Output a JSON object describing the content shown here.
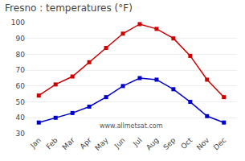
{
  "chart_data": {
    "type": "line",
    "title": "Fresno : temperatures (°F)",
    "categories": [
      "Jan",
      "Feb",
      "Mar",
      "Apr",
      "May",
      "Jun",
      "Jul",
      "Aug",
      "Sep",
      "Oct",
      "Nov",
      "Dec"
    ],
    "series": [
      {
        "color": "#cc0000",
        "marker": "square",
        "values": [
          54,
          61,
          66,
          75,
          84,
          93,
          99,
          96,
          90,
          79,
          64,
          53
        ]
      },
      {
        "color": "#0000cc",
        "marker": "square",
        "values": [
          37,
          40,
          43,
          47,
          53,
          60,
          65,
          64,
          58,
          50,
          41,
          37
        ]
      }
    ],
    "ylim": [
      30,
      100
    ],
    "yticks": [
      30,
      40,
      50,
      60,
      70,
      80,
      90,
      100
    ],
    "grid": true,
    "annotations": [
      "www.allmetsat.com"
    ]
  }
}
